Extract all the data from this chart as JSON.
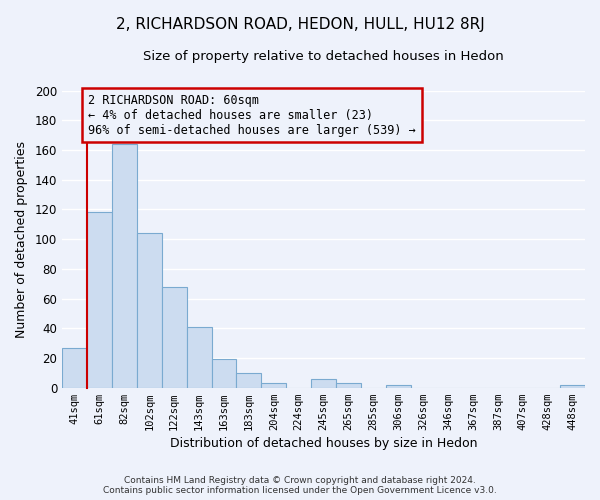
{
  "title": "2, RICHARDSON ROAD, HEDON, HULL, HU12 8RJ",
  "subtitle": "Size of property relative to detached houses in Hedon",
  "xlabel": "Distribution of detached houses by size in Hedon",
  "ylabel": "Number of detached properties",
  "bar_labels": [
    "41sqm",
    "61sqm",
    "82sqm",
    "102sqm",
    "122sqm",
    "143sqm",
    "163sqm",
    "183sqm",
    "204sqm",
    "224sqm",
    "245sqm",
    "265sqm",
    "285sqm",
    "306sqm",
    "326sqm",
    "346sqm",
    "367sqm",
    "387sqm",
    "407sqm",
    "428sqm",
    "448sqm"
  ],
  "bar_values": [
    27,
    118,
    164,
    104,
    68,
    41,
    19,
    10,
    3,
    0,
    6,
    3,
    0,
    2,
    0,
    0,
    0,
    0,
    0,
    0,
    2
  ],
  "bar_color": "#ccdcf0",
  "bar_edge_color": "#7aaad0",
  "ylim": [
    0,
    200
  ],
  "yticks": [
    0,
    20,
    40,
    60,
    80,
    100,
    120,
    140,
    160,
    180,
    200
  ],
  "annotation_title": "2 RICHARDSON ROAD: 60sqm",
  "annotation_line1": "← 4% of detached houses are smaller (23)",
  "annotation_line2": "96% of semi-detached houses are larger (539) →",
  "annotation_box_edge_color": "#cc0000",
  "red_line_color": "#cc0000",
  "footer_line1": "Contains HM Land Registry data © Crown copyright and database right 2024.",
  "footer_line2": "Contains public sector information licensed under the Open Government Licence v3.0.",
  "bg_color": "#eef2fb",
  "grid_color": "#ffffff"
}
